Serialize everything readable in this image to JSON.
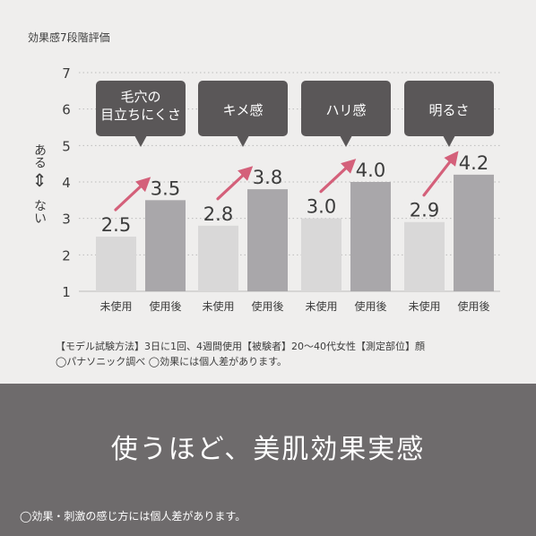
{
  "caption": "効果感7段階評価",
  "y_axis_label": {
    "top": "ある",
    "arrow": "⇕",
    "bottom": "ない"
  },
  "chart_data": {
    "type": "bar",
    "title": "",
    "ylim": [
      1,
      7
    ],
    "yticks": [
      1,
      2,
      3,
      4,
      5,
      6,
      7
    ],
    "grid": "dotted horizontal",
    "series_labels": [
      "未使用",
      "使用後"
    ],
    "groups": [
      {
        "label": [
          "毛穴の",
          "目立ちにくさ"
        ],
        "before": 2.5,
        "after": 3.5,
        "before_text": "2.5",
        "after_text": "3.5"
      },
      {
        "label": [
          "キメ感"
        ],
        "before": 2.8,
        "after": 3.8,
        "before_text": "2.8",
        "after_text": "3.8"
      },
      {
        "label": [
          "ハリ感"
        ],
        "before": 3.0,
        "after": 4.0,
        "before_text": "3.0",
        "after_text": "4.0"
      },
      {
        "label": [
          "明るさ"
        ],
        "before": 2.9,
        "after": 4.2,
        "before_text": "2.9",
        "after_text": "4.2"
      }
    ]
  },
  "colors": {
    "bar_before": "#d9d8d8",
    "bar_after": "#a9a7aa",
    "arrow": "#d4607a",
    "bubble": "#5a5758"
  },
  "notes": {
    "method": "【モデル試験方法】3日に1回、4週間使用【被験者】20〜40代女性【測定部位】顔",
    "survey": "◯パナソニック調べ ◯効果には個人差があります。"
  },
  "headline": "使うほど、美肌効果実感",
  "footnote": "◯効果・刺激の感じ方には個人差があります。"
}
